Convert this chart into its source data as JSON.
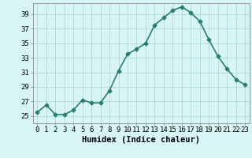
{
  "x": [
    0,
    1,
    2,
    3,
    4,
    5,
    6,
    7,
    8,
    9,
    10,
    11,
    12,
    13,
    14,
    15,
    16,
    17,
    18,
    19,
    20,
    21,
    22,
    23
  ],
  "y": [
    25.5,
    26.5,
    25.2,
    25.2,
    25.8,
    27.2,
    26.8,
    26.8,
    28.5,
    31.2,
    33.5,
    34.2,
    35.0,
    37.5,
    38.5,
    39.5,
    40.0,
    39.2,
    38.0,
    35.5,
    33.2,
    31.5,
    30.0,
    29.3
  ],
  "line_color": "#2d7d6e",
  "marker": "D",
  "marker_size": 2.5,
  "bg_color": "#d8f5f5",
  "grid_color": "#b0d8d8",
  "xlabel": "Humidex (Indice chaleur)",
  "xlim": [
    -0.5,
    23.5
  ],
  "ylim": [
    24.0,
    40.5
  ],
  "yticks": [
    25,
    27,
    29,
    31,
    33,
    35,
    37,
    39
  ],
  "xticks": [
    0,
    1,
    2,
    3,
    4,
    5,
    6,
    7,
    8,
    9,
    10,
    11,
    12,
    13,
    14,
    15,
    16,
    17,
    18,
    19,
    20,
    21,
    22,
    23
  ],
  "tick_label_fontsize": 6.5,
  "xlabel_fontsize": 7.5,
  "linewidth": 1.2
}
